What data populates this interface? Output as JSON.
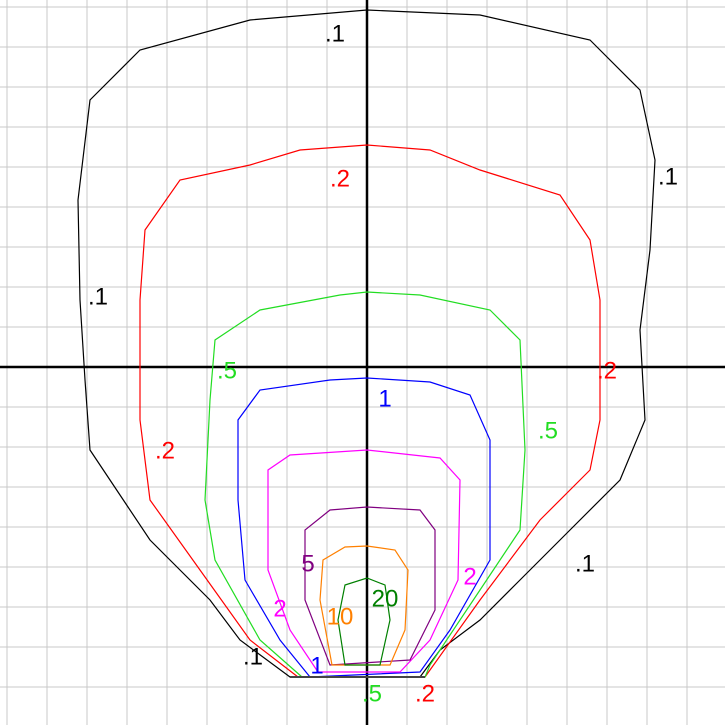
{
  "chart_data": {
    "type": "contour",
    "contours": [
      {
        "color": "#000000",
        "labels": [
          ".1",
          ".1",
          ".1",
          ".1",
          ".1"
        ]
      },
      {
        "color": "#ff0000",
        "labels": [
          ".2",
          ".2",
          ".2",
          ".2"
        ]
      },
      {
        "color": "#22dd22",
        "labels": [
          ".5",
          ".5",
          ".5"
        ]
      },
      {
        "color": "#0000ff",
        "labels": [
          "1",
          "1"
        ]
      },
      {
        "color": "#ff00ff",
        "labels": [
          "2",
          "2"
        ]
      },
      {
        "color": "#800080",
        "labels": [
          "5"
        ]
      },
      {
        "color": "#ff8000",
        "labels": [
          "10"
        ]
      },
      {
        "color": "#008000",
        "labels": [
          "20"
        ]
      }
    ]
  }
}
